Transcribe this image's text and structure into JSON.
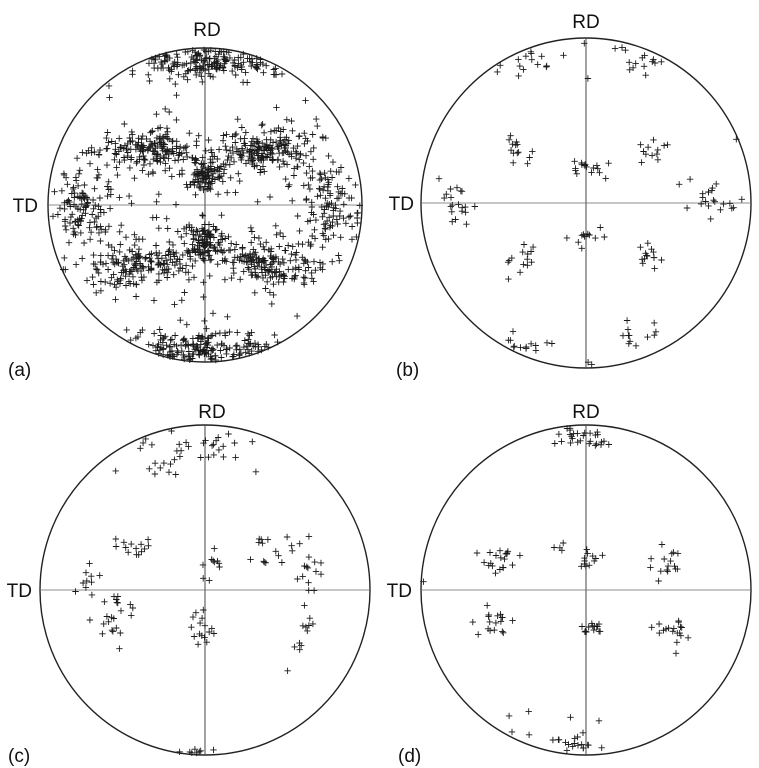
{
  "figure": {
    "panels": [
      {
        "id": "a",
        "panel_label": "(a)",
        "top_label": "RD",
        "left_label": "TD",
        "density": "high"
      },
      {
        "id": "b",
        "panel_label": "(b)",
        "top_label": "RD",
        "left_label": "TD",
        "density": "low"
      },
      {
        "id": "c",
        "panel_label": "(c)",
        "top_label": "RD",
        "left_label": "TD",
        "density": "low"
      },
      {
        "id": "d",
        "panel_label": "(d)",
        "top_label": "RD",
        "left_label": "TD",
        "density": "low"
      }
    ],
    "colors": {
      "ink": "#1a1a1a",
      "background": "#ffffff"
    },
    "marker": "plus"
  }
}
